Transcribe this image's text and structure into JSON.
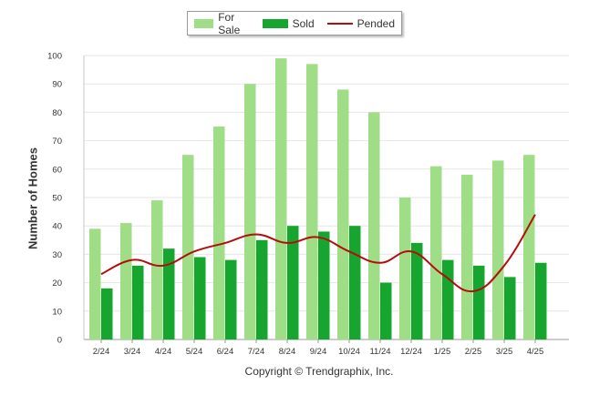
{
  "chart_data": {
    "type": "bar",
    "ylabel": "Number of Homes",
    "xlabel": "",
    "ylim": [
      0,
      100
    ],
    "yticks": [
      0,
      10,
      20,
      30,
      40,
      50,
      60,
      70,
      80,
      90,
      100
    ],
    "categories": [
      "2/24",
      "3/24",
      "4/24",
      "5/24",
      "6/24",
      "7/24",
      "8/24",
      "9/24",
      "10/24",
      "11/24",
      "12/24",
      "1/25",
      "2/25",
      "3/25",
      "4/25"
    ],
    "series": [
      {
        "name": "For Sale",
        "kind": "bar",
        "color": "#a0dd87",
        "values": [
          39,
          41,
          49,
          65,
          75,
          90,
          99,
          97,
          88,
          80,
          50,
          61,
          58,
          63,
          65
        ]
      },
      {
        "name": "Sold",
        "kind": "bar",
        "color": "#16a630",
        "values": [
          18,
          26,
          32,
          29,
          28,
          35,
          40,
          38,
          40,
          20,
          34,
          28,
          26,
          22,
          27
        ]
      },
      {
        "name": "Pended",
        "kind": "line",
        "color": "#b50c0c",
        "values": [
          23,
          28,
          26,
          31,
          34,
          37,
          34,
          36,
          31,
          27,
          31,
          23,
          17,
          26,
          44
        ]
      }
    ],
    "grid": true,
    "legend_position": "top-center"
  },
  "footer": {
    "copyright": "Copyright © Trendgraphix, Inc."
  }
}
